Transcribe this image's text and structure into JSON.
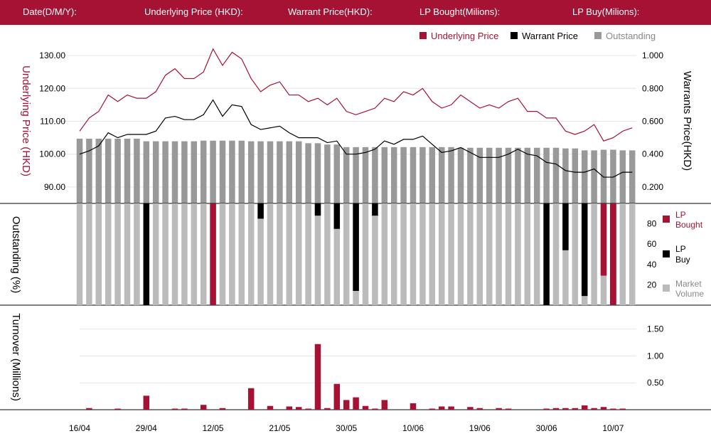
{
  "header": {
    "date_label": "Date(D/M/Y):",
    "underlying_label": "Underlying Price (HKD):",
    "warrant_label": "Warrant  Price(HKD):",
    "lp_bought_label": "LP Bought(Milions):",
    "lp_buy_label": "LP Buy(Milions):"
  },
  "colors": {
    "header_bg": "#a51234",
    "underlying": "#a51234",
    "warrant": "#000000",
    "outstanding": "#999999",
    "market_volume": "#bbbbbb",
    "lp_bought": "#a51234",
    "lp_buy": "#000000",
    "turnover": "#a51234"
  },
  "chart_data": [
    {
      "type": "line",
      "legend": [
        "Underlying Price",
        "Warrant  Price",
        "Outstanding"
      ],
      "left_axis_label": "Underlying Price (HKD)",
      "right_axis_label": "Warrants  Price(HKD)",
      "left_ticks": [
        "130.00",
        "120.00",
        "110.00",
        "100.00",
        "90.00"
      ],
      "left_tick_values": [
        130,
        120,
        110,
        100,
        90
      ],
      "right_ticks": [
        "1.000",
        "0.800",
        "0.600",
        "0.400",
        "0.200"
      ],
      "right_tick_values": [
        1.0,
        0.8,
        0.6,
        0.4,
        0.2
      ],
      "ylim_left": [
        85,
        135
      ],
      "ylim_right": [
        0.1,
        1.1
      ],
      "underlying": [
        107.0,
        111.0,
        113.0,
        118.0,
        116.0,
        118.0,
        117.0,
        117.0,
        119.0,
        124.0,
        126.0,
        123.0,
        123.0,
        125.0,
        132.0,
        127.0,
        131.0,
        129.0,
        123.0,
        119.0,
        121.0,
        122.0,
        118.0,
        118.0,
        116.0,
        117.0,
        115.0,
        117.0,
        113.0,
        112.0,
        113.0,
        114.0,
        117.0,
        116.0,
        119.0,
        118.0,
        120.0,
        116.0,
        114.0,
        115.0,
        118.0,
        116.0,
        114.0,
        115.0,
        114.0,
        116.0,
        117.0,
        113.0,
        113.0,
        111.0,
        111.0,
        107.0,
        106.0,
        107.0,
        109.0,
        104.0,
        105.0,
        107.0,
        108.0
      ],
      "warrant": [
        0.4,
        0.42,
        0.45,
        0.53,
        0.5,
        0.52,
        0.52,
        0.52,
        0.54,
        0.62,
        0.63,
        0.61,
        0.61,
        0.64,
        0.73,
        0.63,
        0.7,
        0.69,
        0.58,
        0.55,
        0.56,
        0.57,
        0.53,
        0.5,
        0.5,
        0.5,
        0.47,
        0.48,
        0.4,
        0.4,
        0.41,
        0.43,
        0.48,
        0.46,
        0.49,
        0.49,
        0.51,
        0.46,
        0.41,
        0.42,
        0.44,
        0.41,
        0.38,
        0.38,
        0.38,
        0.4,
        0.43,
        0.4,
        0.39,
        0.35,
        0.34,
        0.3,
        0.29,
        0.29,
        0.31,
        0.26,
        0.26,
        0.29,
        0.29
      ],
      "outstanding_pct": [
        100,
        100,
        100,
        100,
        100,
        100,
        100,
        96,
        96,
        96,
        96,
        96,
        96,
        97,
        97,
        97,
        97,
        97,
        96,
        96,
        96,
        96,
        96,
        96,
        93,
        93,
        91,
        91,
        87,
        87,
        87,
        87,
        87,
        87,
        87,
        87,
        87,
        87,
        87,
        87,
        86,
        86,
        86,
        86,
        86,
        86,
        86,
        86,
        86,
        86,
        86,
        85,
        85,
        82,
        82,
        83,
        83,
        82,
        82
      ]
    },
    {
      "type": "bar",
      "ylabel": "Outstanding (%)",
      "ticks": [
        "80",
        "60",
        "40",
        "20"
      ],
      "tick_values": [
        80,
        60,
        40,
        20
      ],
      "ylim": [
        0,
        100
      ],
      "legend": [
        "LP Bought",
        "LP Buy",
        "Market Volume"
      ],
      "market_volume": [
        100,
        100,
        100,
        100,
        100,
        100,
        100,
        100,
        100,
        100,
        100,
        100,
        100,
        100,
        100,
        100,
        100,
        100,
        100,
        100,
        100,
        100,
        100,
        100,
        100,
        100,
        100,
        100,
        100,
        100,
        100,
        100,
        100,
        100,
        100,
        100,
        100,
        100,
        100,
        100,
        100,
        100,
        100,
        100,
        100,
        100,
        100,
        100,
        100,
        100,
        100,
        100,
        100,
        100,
        100,
        100,
        100,
        100,
        100
      ],
      "lp_buy_from_top": [
        0,
        0,
        0,
        0,
        0,
        0,
        0,
        100,
        0,
        0,
        0,
        0,
        0,
        0,
        0,
        0,
        0,
        0,
        0,
        15,
        0,
        0,
        0,
        0,
        0,
        12,
        0,
        25,
        0,
        86,
        0,
        12,
        0,
        0,
        0,
        0,
        0,
        0,
        0,
        0,
        0,
        0,
        0,
        0,
        0,
        0,
        0,
        0,
        0,
        100,
        0,
        0,
        0,
        0,
        0,
        0,
        0,
        0,
        0
      ],
      "lp_bought_from_top": [
        0,
        0,
        0,
        0,
        0,
        0,
        0,
        0,
        0,
        0,
        0,
        0,
        0,
        0,
        100,
        0,
        0,
        0,
        0,
        0,
        0,
        0,
        0,
        0,
        0,
        0,
        0,
        0,
        0,
        0,
        0,
        0,
        0,
        0,
        0,
        0,
        0,
        0,
        0,
        0,
        0,
        0,
        0,
        0,
        0,
        0,
        0,
        0,
        0,
        0,
        0,
        0,
        0,
        0,
        0,
        0,
        0,
        0,
        0
      ],
      "lp_buy_extra": [
        [
          51,
          46
        ],
        [
          53,
          91
        ],
        [
          56,
          100
        ]
      ],
      "lp_bought_extra": [
        [
          55,
          71
        ],
        [
          56,
          100
        ]
      ]
    },
    {
      "type": "bar",
      "ylabel": "Turnover (Millions)",
      "ticks": [
        "1.50",
        "1.00",
        "0.50"
      ],
      "tick_values": [
        1.5,
        1.0,
        0.5
      ],
      "ylim": [
        0,
        1.6
      ],
      "values": [
        0,
        0.03,
        0,
        0,
        0.02,
        0,
        0,
        0.26,
        0,
        0,
        0.02,
        0.02,
        0,
        0.09,
        0,
        0.03,
        0,
        0,
        0.4,
        0,
        0.07,
        0,
        0.06,
        0.05,
        0.02,
        1.22,
        0.03,
        0.48,
        0.18,
        0.23,
        0.07,
        0.02,
        0.18,
        0,
        0,
        0.12,
        0,
        0.02,
        0.06,
        0.06,
        0,
        0.05,
        0.03,
        0,
        0.03,
        0.02,
        0,
        0,
        0,
        0.02,
        0.03,
        0.03,
        0.03,
        0.08,
        0.03,
        0.05,
        0.02,
        0.02,
        0
      ],
      "x_labels": [
        "16/04",
        "29/04",
        "12/05",
        "21/05",
        "30/05",
        "10/06",
        "19/06",
        "30/06",
        "10/07"
      ],
      "x_label_index": [
        0,
        7,
        14,
        21,
        28,
        35,
        42,
        49,
        56
      ]
    }
  ]
}
